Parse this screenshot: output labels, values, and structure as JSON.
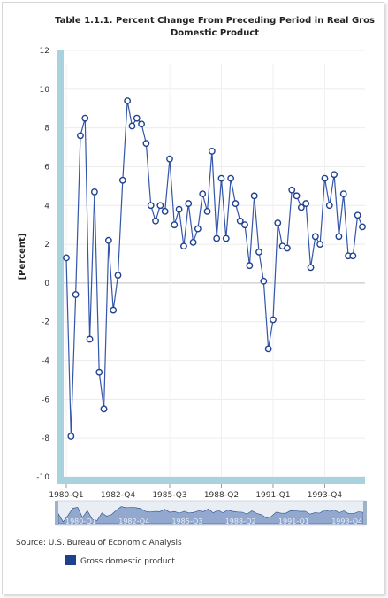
{
  "title_line1": "Table 1.1.1. Percent Change From Preceding Period in Real Gros",
  "title_line2": "Domestic Product",
  "source": "Source: U.S. Bureau of Economic Analysis",
  "navigator_labels": [
    "1980-Q1",
    "1982-Q4",
    "1985-Q3",
    "1988-Q2",
    "1991-Q1",
    "1993-Q4"
  ],
  "chart_data": {
    "type": "line",
    "title": "Table 1.1.1. Percent Change From Preceding Period in Real Gros Domestic Product",
    "xlabel": "",
    "ylabel": "[Percent]",
    "ylim": [
      -10,
      12
    ],
    "y_ticks": [
      -10,
      -8,
      -6,
      -4,
      -2,
      0,
      2,
      4,
      6,
      8,
      10,
      12
    ],
    "x_tick_labels": [
      "1980-Q1",
      "1982-Q4",
      "1985-Q3",
      "1988-Q2",
      "1991-Q1",
      "1993-Q4"
    ],
    "x_tick_indices": [
      0,
      11,
      22,
      33,
      44,
      55
    ],
    "grid": true,
    "legend_position": "bottom-left",
    "series": [
      {
        "name": "Gross domestic product",
        "color": "#1f3f8f",
        "values": [
          1.3,
          -7.9,
          -0.6,
          7.6,
          8.5,
          -2.9,
          4.7,
          -4.6,
          -6.5,
          2.2,
          -1.4,
          0.4,
          5.3,
          9.4,
          8.1,
          8.5,
          8.2,
          7.2,
          4.0,
          3.2,
          4.0,
          3.7,
          6.4,
          3.0,
          3.8,
          1.9,
          4.1,
          2.1,
          2.8,
          4.6,
          3.7,
          6.8,
          2.3,
          5.4,
          2.3,
          5.4,
          4.1,
          3.2,
          3.0,
          0.9,
          4.5,
          1.6,
          0.1,
          -3.4,
          -1.9,
          3.1,
          1.9,
          1.8,
          4.8,
          4.5,
          3.9,
          4.1,
          0.8,
          2.4,
          2.0,
          5.4,
          4.0,
          5.6,
          2.4,
          4.6,
          1.4,
          1.4,
          3.5,
          2.9
        ]
      }
    ]
  }
}
